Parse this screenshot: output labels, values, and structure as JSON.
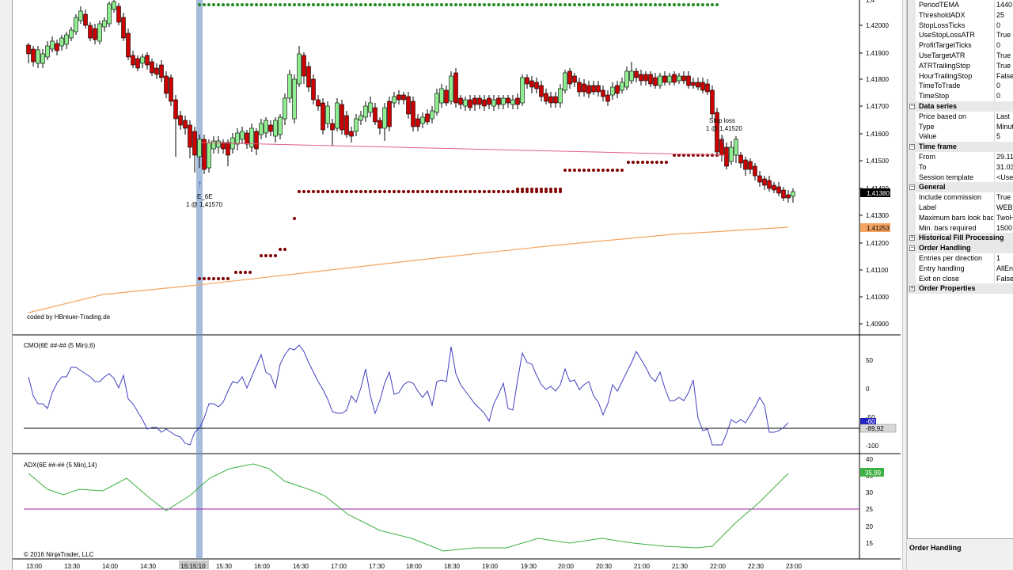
{
  "chart": {
    "price_axis": [
      "1,42000",
      "1,41900",
      "1,41800",
      "1,41700",
      "1,41600",
      "1,41500",
      "1,41400",
      "1,41300",
      "1,41200",
      "1,41100",
      "1,41000",
      "1,40900"
    ],
    "price_axis_top": "1,4",
    "time_axis": [
      "13:00",
      "13:30",
      "14:00",
      "14:30",
      "15:15:10",
      "15:30",
      "16:00",
      "16:30",
      "17:00",
      "17:30",
      "18:00",
      "18:30",
      "19:00",
      "19:30",
      "20:00",
      "20:30",
      "21:00",
      "21:30",
      "22:00",
      "22:30",
      "23:00"
    ],
    "current_price_badge": "1,41380",
    "sma_badge": "1,41253",
    "coded_by": "coded by HBreuer-Trading.de",
    "copyright": "© 2016 NinjaTrader, LLC",
    "entry_marker": {
      "name": "E_6E",
      "detail": "1 @ 1,41570"
    },
    "exit_marker": {
      "name": "Stop loss",
      "detail": "1 @ 1,41520"
    },
    "cmo": {
      "title": "CMO(6E ##-## (5 Min),6)",
      "axis": [
        "50",
        "0",
        "-50",
        "-100"
      ],
      "badge_a": "-60",
      "badge_b": "-89,92"
    },
    "adx": {
      "title": "ADX(6E ##-## (5 Min),14)",
      "axis": [
        "40",
        "35",
        "30",
        "25",
        "20",
        "15"
      ],
      "badge": "35,99"
    },
    "colors": {
      "up_candle": "#90EE90",
      "down_candle": "#CC0000",
      "dots_top": "#228B22",
      "dots_stop": "#800000",
      "sma_line": "#F4A460",
      "trend_line": "#E0607F",
      "cmo_line": "#4040C0",
      "adx_line": "#3CB043",
      "adx_threshold": "#A020A0",
      "selection_bar": "#6A8FC4"
    }
  },
  "properties": {
    "rows": [
      {
        "type": "prop",
        "name": "PeriodTEMA",
        "value": "1440"
      },
      {
        "type": "prop",
        "name": "ThresholdADX",
        "value": "25"
      },
      {
        "type": "prop",
        "name": "StopLossTicks",
        "value": "0"
      },
      {
        "type": "prop",
        "name": "UseStopLossATR",
        "value": "True"
      },
      {
        "type": "prop",
        "name": "ProfitTargetTicks",
        "value": "0"
      },
      {
        "type": "prop",
        "name": "UseTargetATR",
        "value": "True"
      },
      {
        "type": "prop",
        "name": "ATRTrailingStop",
        "value": "True"
      },
      {
        "type": "prop",
        "name": "HourTrailingStop",
        "value": "False"
      },
      {
        "type": "prop",
        "name": "TimeToTrade",
        "value": "0"
      },
      {
        "type": "prop",
        "name": "TimeStop",
        "value": "0"
      },
      {
        "type": "cat",
        "name": "Data series",
        "toggle": "−"
      },
      {
        "type": "prop",
        "name": "Price based on",
        "value": "Last"
      },
      {
        "type": "prop",
        "name": "Type",
        "value": "Minute"
      },
      {
        "type": "prop",
        "name": "Value",
        "value": "5"
      },
      {
        "type": "cat",
        "name": "Time frame",
        "toggle": "−"
      },
      {
        "type": "prop",
        "name": "From",
        "value": "29.11"
      },
      {
        "type": "prop",
        "name": "To",
        "value": "31.03"
      },
      {
        "type": "prop",
        "name": "Session template",
        "value": "<Use"
      },
      {
        "type": "cat",
        "name": "General",
        "toggle": "−"
      },
      {
        "type": "prop",
        "name": "Include commission",
        "value": "True"
      },
      {
        "type": "prop",
        "name": "Label",
        "value": "WEB_"
      },
      {
        "type": "prop",
        "name": "Maximum bars look bac",
        "value": "TwoH"
      },
      {
        "type": "prop",
        "name": "Min. bars required",
        "value": "1500"
      },
      {
        "type": "cat",
        "name": "Historical Fill Processing",
        "toggle": "+"
      },
      {
        "type": "cat",
        "name": "Order Handling",
        "toggle": "−"
      },
      {
        "type": "prop",
        "name": "Entries per direction",
        "value": "1"
      },
      {
        "type": "prop",
        "name": "Entry handling",
        "value": "AllEnt"
      },
      {
        "type": "prop",
        "name": "Exit on close",
        "value": "False"
      },
      {
        "type": "cat",
        "name": "Order Properties",
        "toggle": "+"
      }
    ],
    "footer_title": "Order Handling"
  }
}
